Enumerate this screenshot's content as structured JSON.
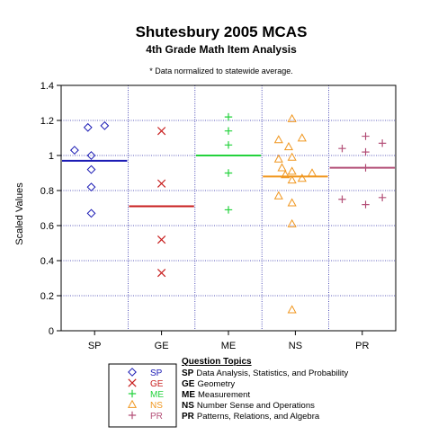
{
  "chart_data": {
    "type": "scatter",
    "title": "Shutesbury 2005 MCAS",
    "subtitle": "4th Grade Math Item Analysis",
    "note": "* Data normalized to statewide average.",
    "ylabel": "Scaled Values",
    "ylim": [
      0,
      1.4
    ],
    "yticks": [
      "0",
      "0.2",
      "0.4",
      "0.6",
      "0.8",
      "1",
      "1.2",
      "1.4"
    ],
    "grid": true,
    "categories": [
      "SP",
      "GE",
      "ME",
      "NS",
      "PR"
    ],
    "series": [
      {
        "code": "SP",
        "marker": "diamond",
        "color": "#1a1ab4",
        "mean": 0.97,
        "points": [
          {
            "offset": -0.3,
            "y": 1.03
          },
          {
            "offset": -0.1,
            "y": 1.16
          },
          {
            "offset": 0.15,
            "y": 1.17
          },
          {
            "offset": -0.05,
            "y": 1.0
          },
          {
            "offset": -0.05,
            "y": 0.92
          },
          {
            "offset": -0.05,
            "y": 0.82
          },
          {
            "offset": -0.05,
            "y": 0.67
          }
        ]
      },
      {
        "code": "GE",
        "marker": "x",
        "color": "#c81e1e",
        "mean": 0.71,
        "points": [
          {
            "offset": 0,
            "y": 1.14
          },
          {
            "offset": 0,
            "y": 0.84
          },
          {
            "offset": 0,
            "y": 0.52
          },
          {
            "offset": 0,
            "y": 0.33
          }
        ]
      },
      {
        "code": "ME",
        "marker": "plus",
        "color": "#23d23c",
        "mean": 1.0,
        "points": [
          {
            "offset": 0,
            "y": 1.22
          },
          {
            "offset": 0,
            "y": 1.14
          },
          {
            "offset": 0,
            "y": 1.06
          },
          {
            "offset": 0,
            "y": 0.9
          },
          {
            "offset": 0,
            "y": 0.69
          }
        ]
      },
      {
        "code": "NS",
        "marker": "triangle",
        "color": "#f0961e",
        "mean": 0.88,
        "points": [
          {
            "offset": -0.25,
            "y": 1.09
          },
          {
            "offset": -0.05,
            "y": 1.21
          },
          {
            "offset": 0.1,
            "y": 1.1
          },
          {
            "offset": -0.1,
            "y": 1.05
          },
          {
            "offset": -0.25,
            "y": 0.98
          },
          {
            "offset": -0.05,
            "y": 0.99
          },
          {
            "offset": -0.2,
            "y": 0.93
          },
          {
            "offset": -0.05,
            "y": 0.91
          },
          {
            "offset": 0.25,
            "y": 0.9
          },
          {
            "offset": -0.15,
            "y": 0.89
          },
          {
            "offset": -0.05,
            "y": 0.86
          },
          {
            "offset": 0.1,
            "y": 0.87
          },
          {
            "offset": -0.25,
            "y": 0.77
          },
          {
            "offset": -0.05,
            "y": 0.73
          },
          {
            "offset": -0.05,
            "y": 0.61
          },
          {
            "offset": -0.05,
            "y": 0.12
          }
        ]
      },
      {
        "code": "PR",
        "marker": "plus",
        "color": "#b45078",
        "mean": 0.93,
        "points": [
          {
            "offset": 0.05,
            "y": 1.11
          },
          {
            "offset": 0.3,
            "y": 1.07
          },
          {
            "offset": -0.3,
            "y": 1.04
          },
          {
            "offset": 0.05,
            "y": 1.02
          },
          {
            "offset": 0.05,
            "y": 0.93
          },
          {
            "offset": -0.3,
            "y": 0.75
          },
          {
            "offset": 0.05,
            "y": 0.72
          },
          {
            "offset": 0.3,
            "y": 0.76
          }
        ]
      }
    ],
    "legend": {
      "heading": "Question Topics",
      "placement": "bottom",
      "items": [
        {
          "code": "SP",
          "text": "Data Analysis, Statistics, and Probability"
        },
        {
          "code": "GE",
          "text": "Geometry"
        },
        {
          "code": "ME",
          "text": "Measurement"
        },
        {
          "code": "NS",
          "text": "Number Sense and Operations"
        },
        {
          "code": "PR",
          "text": "Patterns, Relations, and Algebra"
        }
      ]
    }
  }
}
